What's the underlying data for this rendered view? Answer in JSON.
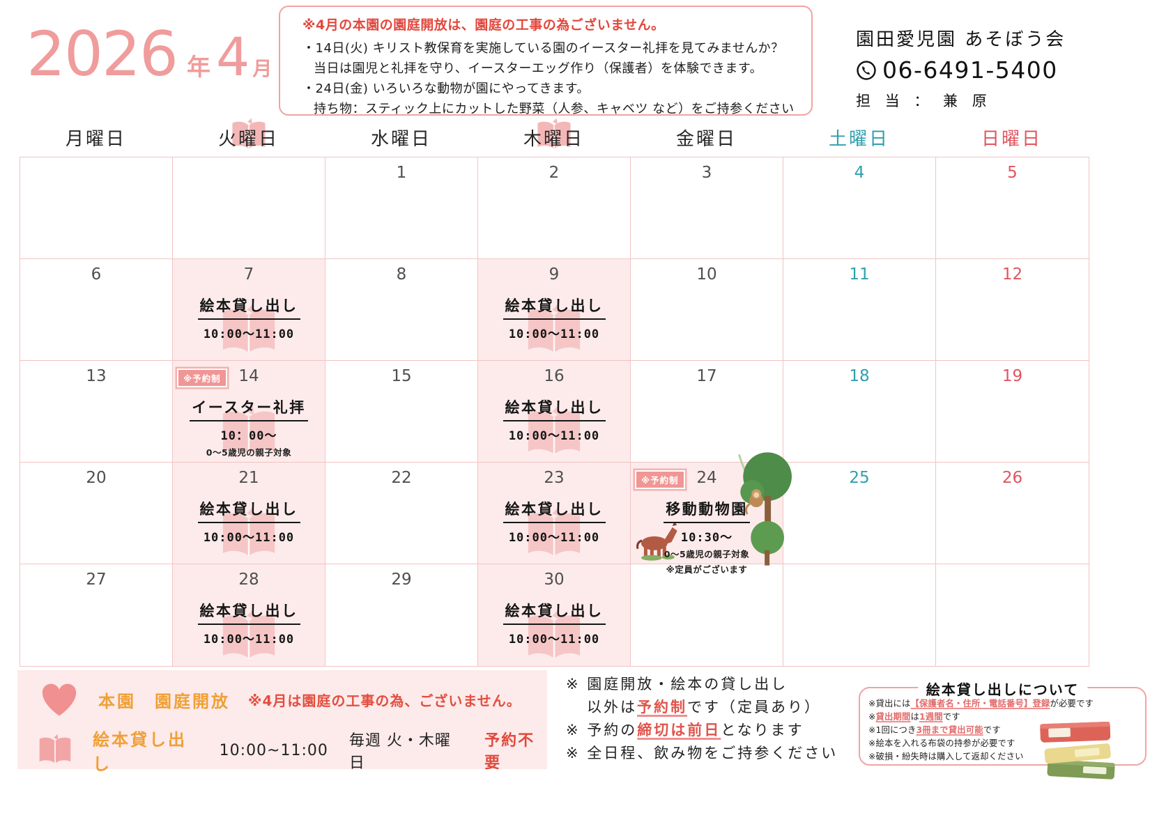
{
  "colors": {
    "title_pink": "#f09c9c",
    "accent_red": "#e2473d",
    "orange": "#efa035",
    "saturday": "#2e9fae",
    "sunday": "#e0545e",
    "grid_line": "#f2c3c3",
    "event_cell_bg": "#fdebeb",
    "badge_bg": "#f09695"
  },
  "title": {
    "year": "2026",
    "year_unit": "年",
    "month": "4",
    "month_unit": "月"
  },
  "notice_box": {
    "headline": "※4月の本園の園庭開放は、園庭の工事の為ございません。",
    "lines": [
      "・14日(火) キリスト教保育を実施している園のイースター礼拝を見てみませんか？",
      "当日は園児と礼拝を守り、イースターエッグ作り（保護者）を体験できます。",
      "・24日(金) いろいろな動物が園にやってきます。",
      "持ち物：スティック上にカットした野菜（人参、キャベツ など）をご持参ください"
    ]
  },
  "org": {
    "name": "園田愛児園 あそぼう会",
    "phone": "06-6491-5400",
    "contact_label": "担 当 ： 兼 原"
  },
  "weekday_headers": [
    {
      "label": "月曜日",
      "type": "weekday",
      "book_icon": false
    },
    {
      "label": "火曜日",
      "type": "weekday",
      "book_icon": true
    },
    {
      "label": "水曜日",
      "type": "weekday",
      "book_icon": false
    },
    {
      "label": "木曜日",
      "type": "weekday",
      "book_icon": true
    },
    {
      "label": "金曜日",
      "type": "weekday",
      "book_icon": false
    },
    {
      "label": "土曜日",
      "type": "saturday",
      "book_icon": false
    },
    {
      "label": "日曜日",
      "type": "sunday",
      "book_icon": false
    }
  ],
  "calendar": {
    "weeks": [
      [
        {
          "date": ""
        },
        {
          "date": ""
        },
        {
          "date": "1"
        },
        {
          "date": "2"
        },
        {
          "date": "3"
        },
        {
          "date": "4"
        },
        {
          "date": "5"
        }
      ],
      [
        {
          "date": "6"
        },
        {
          "date": "7",
          "highlight": true,
          "event": {
            "title": "絵本貸し出し",
            "time": "10:00～11:00",
            "icon": "book"
          }
        },
        {
          "date": "8"
        },
        {
          "date": "9",
          "highlight": true,
          "event": {
            "title": "絵本貸し出し",
            "time": "10:00～11:00",
            "icon": "book"
          }
        },
        {
          "date": "10"
        },
        {
          "date": "11"
        },
        {
          "date": "12"
        }
      ],
      [
        {
          "date": "13"
        },
        {
          "date": "14",
          "highlight": true,
          "badge": "※予約制",
          "event": {
            "title": "イースター礼拝",
            "time": "10：00～",
            "note": "0～5歳児の親子対象",
            "icon": "book"
          }
        },
        {
          "date": "15"
        },
        {
          "date": "16",
          "highlight": true,
          "event": {
            "title": "絵本貸し出し",
            "time": "10:00～11:00",
            "icon": "book"
          }
        },
        {
          "date": "17"
        },
        {
          "date": "18"
        },
        {
          "date": "19"
        }
      ],
      [
        {
          "date": "20"
        },
        {
          "date": "21",
          "highlight": true,
          "event": {
            "title": "絵本貸し出し",
            "time": "10:00～11:00",
            "icon": "book"
          }
        },
        {
          "date": "22"
        },
        {
          "date": "23",
          "highlight": true,
          "event": {
            "title": "絵本貸し出し",
            "time": "10:00～11:00",
            "icon": "book"
          }
        },
        {
          "date": "24",
          "highlight": true,
          "badge": "※予約制",
          "event": {
            "title": "移動動物園",
            "time": "10:30～",
            "note": "0～5歳児の親子対象",
            "note2": "※定員がございます",
            "icon": "zoo"
          }
        },
        {
          "date": "25"
        },
        {
          "date": "26"
        }
      ],
      [
        {
          "date": "27"
        },
        {
          "date": "28",
          "highlight": true,
          "event": {
            "title": "絵本貸し出し",
            "time": "10:00～11:00",
            "icon": "book"
          }
        },
        {
          "date": "29"
        },
        {
          "date": "30",
          "highlight": true,
          "event": {
            "title": "絵本貸し出し",
            "time": "10:00～11:00",
            "icon": "book"
          }
        },
        {
          "date": ""
        },
        {
          "date": ""
        },
        {
          "date": ""
        }
      ]
    ]
  },
  "legend": {
    "garden": {
      "label": "本園　園庭開放",
      "note": "※4月は園庭の工事の為、ございません。"
    },
    "books": {
      "label": "絵本貸し出し",
      "time": "10:00~11:00",
      "days": "毎週 火・木曜日",
      "note": "予約不要"
    }
  },
  "notes": {
    "line1": "※ 園庭開放・絵本の貸し出し",
    "line2_pre": "以外は",
    "line2_em": "予約制",
    "line2_post": "です（定員あり）",
    "line3_pre": "※ 予約の",
    "line3_em": "締切は前日",
    "line3_post": "となります",
    "line4": "※ 全日程、飲み物をご持参ください"
  },
  "lending_box": {
    "title": "絵本貸し出しについて",
    "lines": [
      [
        {
          "t": "※貸出には"
        },
        {
          "t": "【保護者名・住所・電話番号】登録",
          "em": true
        },
        {
          "t": "が必要です"
        }
      ],
      [
        {
          "t": "※"
        },
        {
          "t": "貸出期間",
          "em": true
        },
        {
          "t": "は"
        },
        {
          "t": "1週間",
          "em": true
        },
        {
          "t": "です"
        }
      ],
      [
        {
          "t": "※1回につき"
        },
        {
          "t": "3冊まで貸出可能",
          "em": true
        },
        {
          "t": "です"
        }
      ],
      [
        {
          "t": "※絵本を入れる布袋の持参が必要です"
        }
      ],
      [
        {
          "t": "※破損・紛失時は購入して返却ください"
        }
      ]
    ]
  }
}
